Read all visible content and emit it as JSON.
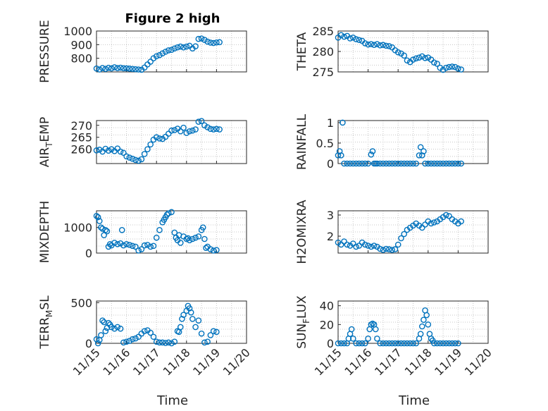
{
  "figure": {
    "title": "Figure 2 high",
    "xlabel": "Time"
  },
  "x_ticks": [
    "11/15",
    "11/16",
    "11/17",
    "11/18",
    "11/19",
    "11/20"
  ],
  "colors": {
    "marker": "#0072BD",
    "axis": "#262626",
    "grid": "#c8c8c8"
  },
  "chart_data": [
    {
      "type": "scatter",
      "panel": "pressure",
      "title": "Figure 2 high",
      "xlabel": "",
      "ylabel": "PRESSURE",
      "ylim": [
        700,
        1000
      ],
      "yticks": [
        800,
        900,
        1000
      ],
      "xlim": [
        0,
        5
      ],
      "x": [
        0.0,
        0.1,
        0.2,
        0.3,
        0.4,
        0.5,
        0.6,
        0.7,
        0.8,
        0.9,
        1.0,
        1.1,
        1.2,
        1.3,
        1.4,
        1.5,
        1.6,
        1.7,
        1.8,
        1.9,
        2.0,
        2.1,
        2.2,
        2.3,
        2.4,
        2.5,
        2.6,
        2.7,
        2.8,
        2.9,
        3.0,
        3.1,
        3.2,
        3.3,
        3.4,
        3.5,
        3.6,
        3.7,
        3.8,
        3.9,
        4.0,
        4.1
      ],
      "y": [
        725,
        718,
        728,
        722,
        730,
        726,
        734,
        728,
        731,
        727,
        726,
        724,
        722,
        720,
        718,
        716,
        732,
        755,
        775,
        800,
        815,
        823,
        836,
        848,
        858,
        862,
        872,
        880,
        886,
        880,
        886,
        892,
        872,
        888,
        942,
        945,
        935,
        922,
        915,
        912,
        916,
        918
      ],
      "grid": true
    },
    {
      "type": "scatter",
      "panel": "theta",
      "title": "",
      "xlabel": "",
      "ylabel": "THETA",
      "ylim": [
        275,
        285
      ],
      "yticks": [
        275,
        280,
        285
      ],
      "xlim": [
        0,
        5
      ],
      "x": [
        0.0,
        0.1,
        0.2,
        0.3,
        0.4,
        0.5,
        0.6,
        0.7,
        0.8,
        0.9,
        1.0,
        1.1,
        1.2,
        1.3,
        1.4,
        1.5,
        1.6,
        1.7,
        1.8,
        1.9,
        2.0,
        2.1,
        2.2,
        2.3,
        2.4,
        2.5,
        2.6,
        2.7,
        2.8,
        2.9,
        3.0,
        3.1,
        3.2,
        3.3,
        3.4,
        3.5,
        3.6,
        3.7,
        3.8,
        3.9,
        4.0,
        4.1
      ],
      "y": [
        283.4,
        284.0,
        283.6,
        283.8,
        283.2,
        283.4,
        283.0,
        282.8,
        282.6,
        282.0,
        281.7,
        281.8,
        281.6,
        281.8,
        281.5,
        281.6,
        281.4,
        281.3,
        281.0,
        280.3,
        279.8,
        279.5,
        279.0,
        277.8,
        277.4,
        278.0,
        278.3,
        278.5,
        278.8,
        278.4,
        278.5,
        278.0,
        277.3,
        277.0,
        276.0,
        275.5,
        276.0,
        276.2,
        276.3,
        276.2,
        275.8,
        275.6
      ],
      "grid": true
    },
    {
      "type": "scatter",
      "panel": "air_temp",
      "title": "",
      "xlabel": "",
      "ylabel": "AIR_TEMP",
      "ylim": [
        254,
        272
      ],
      "yticks": [
        260,
        265,
        270
      ],
      "xlim": [
        0,
        5
      ],
      "x": [
        0.0,
        0.1,
        0.2,
        0.3,
        0.4,
        0.5,
        0.6,
        0.7,
        0.8,
        0.9,
        1.0,
        1.1,
        1.2,
        1.3,
        1.4,
        1.5,
        1.6,
        1.7,
        1.8,
        1.9,
        2.0,
        2.1,
        2.2,
        2.3,
        2.4,
        2.5,
        2.6,
        2.7,
        2.8,
        2.9,
        3.0,
        3.1,
        3.2,
        3.3,
        3.4,
        3.5,
        3.6,
        3.7,
        3.8,
        3.9,
        4.0,
        4.1
      ],
      "y": [
        259.5,
        259.8,
        259.0,
        260.2,
        259.4,
        260.0,
        259.2,
        260.3,
        259.0,
        258.5,
        257.0,
        256.5,
        256.0,
        255.5,
        255.2,
        255.8,
        258.0,
        260.0,
        262.0,
        264.0,
        265.0,
        264.5,
        264.3,
        265.2,
        266.5,
        267.8,
        268.0,
        268.6,
        267.5,
        269.0,
        266.8,
        267.5,
        267.8,
        268.3,
        271.5,
        271.8,
        270.0,
        269.2,
        268.5,
        268.3,
        268.5,
        268.3
      ],
      "grid": true
    },
    {
      "type": "scatter",
      "panel": "rainfall",
      "title": "",
      "xlabel": "",
      "ylabel": "RAINFALL",
      "ylim": [
        0,
        1.05
      ],
      "yticks": [
        0,
        0.5,
        1
      ],
      "xlim": [
        0,
        5
      ],
      "x": [
        0.0,
        0.05,
        0.1,
        0.15,
        0.2,
        0.3,
        0.4,
        0.5,
        0.6,
        0.7,
        0.8,
        0.9,
        1.0,
        1.1,
        1.15,
        1.2,
        1.25,
        1.3,
        1.4,
        1.5,
        1.6,
        1.7,
        1.8,
        1.9,
        2.0,
        2.1,
        2.2,
        2.3,
        2.4,
        2.5,
        2.6,
        2.7,
        2.75,
        2.8,
        2.85,
        2.9,
        3.0,
        3.1,
        3.2,
        3.3,
        3.4,
        3.5,
        3.6,
        3.7,
        3.8,
        3.9,
        4.0,
        4.1
      ],
      "y": [
        0.2,
        0.3,
        0.2,
        1.0,
        0,
        0,
        0,
        0,
        0,
        0,
        0,
        0,
        0,
        0.22,
        0.3,
        0,
        0,
        0,
        0,
        0,
        0,
        0,
        0,
        0,
        0,
        0,
        0,
        0,
        0,
        0,
        0,
        0.2,
        0.4,
        0.2,
        0.3,
        0,
        0,
        0,
        0,
        0,
        0,
        0,
        0,
        0,
        0,
        0,
        0,
        0
      ],
      "grid": true
    },
    {
      "type": "scatter",
      "panel": "mixdepth",
      "title": "",
      "xlabel": "",
      "ylabel": "MIXDEPTH",
      "ylim": [
        0,
        1650
      ],
      "yticks": [
        0,
        1000
      ],
      "xlim": [
        0,
        5
      ],
      "x": [
        0.0,
        0.05,
        0.1,
        0.15,
        0.2,
        0.25,
        0.3,
        0.35,
        0.4,
        0.45,
        0.5,
        0.6,
        0.7,
        0.8,
        0.85,
        0.9,
        1.0,
        1.1,
        1.2,
        1.3,
        1.4,
        1.5,
        1.6,
        1.7,
        1.8,
        1.9,
        2.0,
        2.1,
        2.2,
        2.25,
        2.3,
        2.35,
        2.4,
        2.5,
        2.6,
        2.65,
        2.7,
        2.75,
        2.8,
        2.9,
        3.0,
        3.05,
        3.1,
        3.2,
        3.3,
        3.4,
        3.5,
        3.55,
        3.6,
        3.65,
        3.7,
        3.8,
        3.9,
        4.0
      ],
      "y": [
        1450,
        1400,
        1250,
        1000,
        950,
        700,
        900,
        850,
        250,
        350,
        300,
        400,
        350,
        380,
        900,
        300,
        350,
        320,
        280,
        250,
        100,
        150,
        300,
        320,
        250,
        280,
        600,
        900,
        1200,
        1300,
        1400,
        1500,
        1550,
        1600,
        800,
        600,
        500,
        700,
        400,
        650,
        550,
        580,
        500,
        550,
        600,
        650,
        900,
        1000,
        550,
        200,
        250,
        150,
        100,
        120
      ],
      "grid": true
    },
    {
      "type": "scatter",
      "panel": "h2omixra",
      "title": "",
      "xlabel": "",
      "ylabel": "H2OMIXRA",
      "ylim": [
        1.2,
        3.2
      ],
      "yticks": [
        2,
        3
      ],
      "xlim": [
        0,
        5
      ],
      "x": [
        0.0,
        0.1,
        0.2,
        0.3,
        0.4,
        0.5,
        0.6,
        0.7,
        0.8,
        0.9,
        1.0,
        1.1,
        1.2,
        1.3,
        1.4,
        1.5,
        1.6,
        1.7,
        1.8,
        1.9,
        2.0,
        2.1,
        2.2,
        2.3,
        2.4,
        2.5,
        2.6,
        2.7,
        2.8,
        2.9,
        3.0,
        3.1,
        3.2,
        3.3,
        3.4,
        3.5,
        3.6,
        3.7,
        3.8,
        3.9,
        4.0,
        4.1
      ],
      "y": [
        1.7,
        1.6,
        1.75,
        1.6,
        1.55,
        1.65,
        1.5,
        1.55,
        1.7,
        1.6,
        1.55,
        1.5,
        1.55,
        1.5,
        1.4,
        1.35,
        1.4,
        1.38,
        1.35,
        1.38,
        1.6,
        1.9,
        2.1,
        2.3,
        2.4,
        2.5,
        2.6,
        2.5,
        2.4,
        2.55,
        2.7,
        2.6,
        2.65,
        2.7,
        2.8,
        2.9,
        3.0,
        2.95,
        2.8,
        2.7,
        2.6,
        2.7
      ],
      "grid": true
    },
    {
      "type": "scatter",
      "panel": "terr_msl",
      "title": "",
      "xlabel": "Time",
      "ylabel": "TERR_MSL",
      "ylim": [
        0,
        520
      ],
      "yticks": [
        0,
        500
      ],
      "xlim": [
        0,
        5
      ],
      "x": [
        0.0,
        0.05,
        0.1,
        0.15,
        0.2,
        0.25,
        0.3,
        0.35,
        0.4,
        0.45,
        0.5,
        0.6,
        0.7,
        0.8,
        0.9,
        1.0,
        1.1,
        1.2,
        1.3,
        1.4,
        1.5,
        1.6,
        1.7,
        1.8,
        1.9,
        2.0,
        2.1,
        2.2,
        2.3,
        2.4,
        2.5,
        2.6,
        2.7,
        2.75,
        2.8,
        2.85,
        2.9,
        3.0,
        3.05,
        3.1,
        3.15,
        3.2,
        3.3,
        3.4,
        3.5,
        3.6,
        3.7,
        3.8,
        3.9,
        4.0
      ],
      "y": [
        50,
        0,
        40,
        100,
        280,
        260,
        150,
        190,
        250,
        230,
        200,
        180,
        200,
        180,
        10,
        20,
        30,
        50,
        60,
        80,
        120,
        150,
        160,
        130,
        80,
        20,
        10,
        10,
        5,
        10,
        0,
        20,
        150,
        140,
        200,
        300,
        350,
        400,
        460,
        430,
        380,
        300,
        200,
        280,
        120,
        10,
        20,
        100,
        150,
        140
      ],
      "grid": true
    },
    {
      "type": "scatter",
      "panel": "sun_flux",
      "title": "",
      "xlabel": "Time",
      "ylabel": "SUN_FLUX",
      "ylim": [
        0,
        45
      ],
      "yticks": [
        0,
        20,
        40
      ],
      "xlim": [
        0,
        5
      ],
      "x": [
        0.0,
        0.1,
        0.2,
        0.3,
        0.35,
        0.4,
        0.45,
        0.5,
        0.6,
        0.7,
        0.8,
        0.9,
        1.0,
        1.05,
        1.1,
        1.15,
        1.2,
        1.25,
        1.3,
        1.4,
        1.5,
        1.6,
        1.7,
        1.8,
        1.9,
        2.0,
        2.1,
        2.2,
        2.3,
        2.4,
        2.5,
        2.6,
        2.7,
        2.75,
        2.8,
        2.85,
        2.9,
        2.95,
        3.0,
        3.05,
        3.1,
        3.15,
        3.2,
        3.3,
        3.4,
        3.5,
        3.6,
        3.7,
        3.8,
        3.9,
        4.0
      ],
      "y": [
        0,
        0,
        0,
        0,
        5,
        10,
        15,
        5,
        0,
        0,
        0,
        0,
        5,
        15,
        20,
        21,
        20,
        15,
        5,
        0,
        0,
        0,
        0,
        0,
        0,
        0,
        0,
        0,
        0,
        0,
        0,
        0,
        5,
        10,
        18,
        25,
        35,
        30,
        20,
        10,
        5,
        3,
        0,
        0,
        0,
        0,
        0,
        0,
        0,
        0,
        0
      ],
      "grid": true
    }
  ]
}
